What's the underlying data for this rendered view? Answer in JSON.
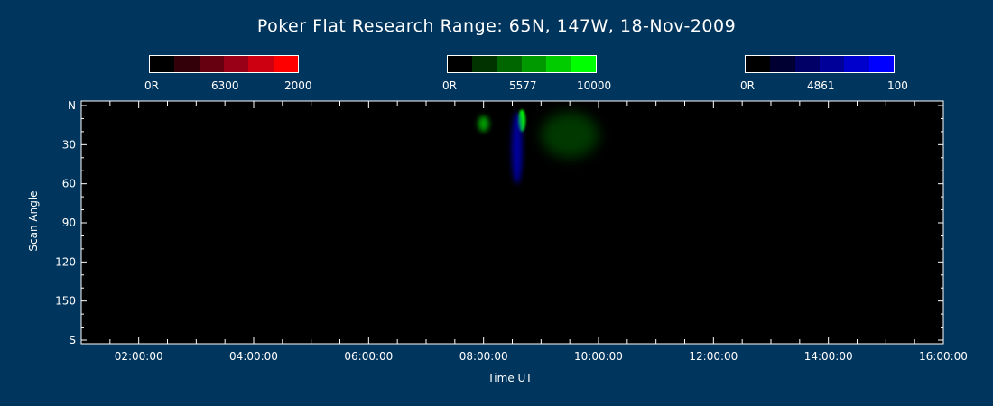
{
  "chart_data": {
    "type": "heatmap",
    "title": "Poker Flat Research Range: 65N, 147W, 18-Nov-2009",
    "xlabel": "Time UT",
    "ylabel": "Scan Angle",
    "xlim": [
      "01:00:00",
      "16:00:00"
    ],
    "ylim": [
      0,
      180
    ],
    "x_ticks": [
      "02:00:00",
      "04:00:00",
      "06:00:00",
      "08:00:00",
      "10:00:00",
      "12:00:00",
      "14:00:00",
      "16:00:00"
    ],
    "y_ticks": [
      "N",
      "30",
      "60",
      "90",
      "120",
      "150",
      "S"
    ],
    "colorbars": [
      {
        "name": "6300",
        "min_label": "0R",
        "mid_label": "6300",
        "max_label": "2000",
        "max_color": "#ff0000",
        "swatches": [
          "#000000",
          "#33000a",
          "#660010",
          "#990018",
          "#cc0010",
          "#ff0000"
        ]
      },
      {
        "name": "5577",
        "min_label": "0R",
        "mid_label": "5577",
        "max_label": "10000",
        "max_color": "#00ff00",
        "swatches": [
          "#000000",
          "#003300",
          "#006600",
          "#009900",
          "#00cc00",
          "#00ff00"
        ]
      },
      {
        "name": "4861",
        "min_label": "0R",
        "mid_label": "4861",
        "max_label": "100",
        "max_color": "#0000ff",
        "swatches": [
          "#000000",
          "#000033",
          "#000066",
          "#000099",
          "#0000cc",
          "#0000ff"
        ]
      }
    ],
    "features": [
      {
        "label": "green arc",
        "time": "08:40:00",
        "angle_min": 3,
        "angle_max": 20,
        "channel": "5577",
        "intensity": "high"
      },
      {
        "label": "green patch",
        "time": "08:00:00",
        "angle_min": 8,
        "angle_max": 20,
        "channel": "5577",
        "intensity": "medium"
      },
      {
        "label": "blue streak",
        "time": "08:35:00",
        "angle_min": 5,
        "angle_max": 60,
        "channel": "4861",
        "intensity": "medium"
      },
      {
        "label": "diffuse green glow",
        "time": "09:30:00",
        "angle_min": 5,
        "angle_max": 40,
        "channel": "5577",
        "intensity": "low"
      }
    ]
  }
}
